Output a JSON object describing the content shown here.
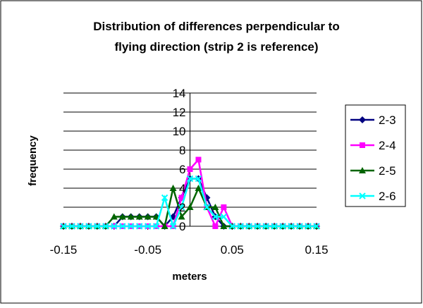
{
  "chart_data": {
    "type": "line",
    "title_lines": [
      "Distribution of differences perpendicular to",
      "flying direction (strip 2 is reference)"
    ],
    "xlabel": "meters",
    "ylabel": "frequency",
    "xlim": [
      -0.15,
      0.15
    ],
    "ylim": [
      0,
      14
    ],
    "x_ticks": [
      "-0.15",
      "-0.05",
      "0.05",
      "0.15"
    ],
    "x_tick_values": [
      -0.15,
      -0.05,
      0.05,
      0.15
    ],
    "y_ticks": [
      "0",
      "2",
      "4",
      "6",
      "8",
      "10",
      "12",
      "14"
    ],
    "y_tick_values": [
      0,
      2,
      4,
      6,
      8,
      10,
      12,
      14
    ],
    "grid": "horizontal",
    "legend_position": "right",
    "series": [
      {
        "name": "2-3",
        "color": "#000080",
        "marker": "diamond",
        "x": [
          -0.15,
          -0.14,
          -0.13,
          -0.12,
          -0.11,
          -0.1,
          -0.09,
          -0.08,
          -0.07,
          -0.06,
          -0.05,
          -0.04,
          -0.03,
          -0.02,
          -0.01,
          0,
          0.01,
          0.02,
          0.03,
          0.04,
          0.05,
          0.06,
          0.07,
          0.08,
          0.09,
          0.1,
          0.11,
          0.12,
          0.13,
          0.14,
          0.15
        ],
        "values": [
          0,
          0,
          0,
          0,
          0,
          0,
          0,
          1,
          1,
          1,
          1,
          1,
          0,
          1,
          3,
          5,
          5,
          3,
          1,
          0,
          0,
          0,
          0,
          0,
          0,
          0,
          0,
          0,
          0,
          0,
          0
        ]
      },
      {
        "name": "2-4",
        "color": "#FF00FF",
        "marker": "square",
        "x": [
          -0.15,
          -0.14,
          -0.13,
          -0.12,
          -0.11,
          -0.1,
          -0.09,
          -0.08,
          -0.07,
          -0.06,
          -0.05,
          -0.04,
          -0.03,
          -0.02,
          -0.01,
          0,
          0.01,
          0.02,
          0.03,
          0.04,
          0.05,
          0.06,
          0.07,
          0.08,
          0.09,
          0.1,
          0.11,
          0.12,
          0.13,
          0.14,
          0.15
        ],
        "values": [
          0,
          0,
          0,
          0,
          0,
          0,
          0,
          0,
          0,
          0,
          0,
          0,
          0,
          0,
          3,
          6,
          7,
          2,
          0,
          2,
          0,
          0,
          0,
          0,
          0,
          0,
          0,
          0,
          0,
          0,
          0
        ]
      },
      {
        "name": "2-5",
        "color": "#006400",
        "marker": "triangle",
        "x": [
          -0.15,
          -0.14,
          -0.13,
          -0.12,
          -0.11,
          -0.1,
          -0.09,
          -0.08,
          -0.07,
          -0.06,
          -0.05,
          -0.04,
          -0.03,
          -0.02,
          -0.01,
          0,
          0.01,
          0.02,
          0.03,
          0.04,
          0.05,
          0.06,
          0.07,
          0.08,
          0.09,
          0.1,
          0.11,
          0.12,
          0.13,
          0.14,
          0.15
        ],
        "values": [
          0,
          0,
          0,
          0,
          0,
          0,
          1,
          1,
          1,
          1,
          1,
          1,
          0,
          4,
          1,
          2,
          4,
          2,
          2,
          0,
          0,
          0,
          0,
          0,
          0,
          0,
          0,
          0,
          0,
          0,
          0
        ]
      },
      {
        "name": "2-6",
        "color": "#00FFFF",
        "marker": "x",
        "x": [
          -0.15,
          -0.14,
          -0.13,
          -0.12,
          -0.11,
          -0.1,
          -0.09,
          -0.08,
          -0.07,
          -0.06,
          -0.05,
          -0.04,
          -0.03,
          -0.02,
          -0.01,
          0,
          0.01,
          0.02,
          0.03,
          0.04,
          0.05,
          0.06,
          0.07,
          0.08,
          0.09,
          0.1,
          0.11,
          0.12,
          0.13,
          0.14,
          0.15
        ],
        "values": [
          0,
          0,
          0,
          0,
          0,
          0,
          0,
          0,
          0,
          0,
          0,
          0,
          3,
          0,
          2,
          5,
          5,
          2,
          1,
          1,
          0,
          0,
          0,
          0,
          0,
          0,
          0,
          0,
          0,
          0,
          0
        ]
      }
    ]
  }
}
